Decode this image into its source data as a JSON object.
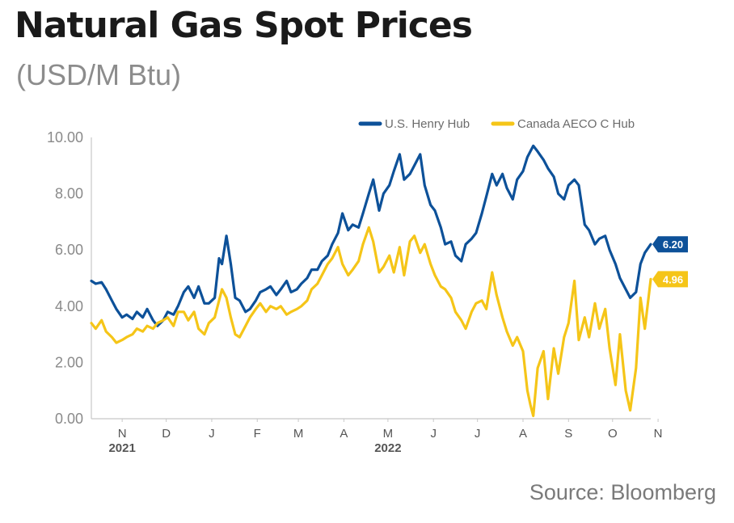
{
  "header": {
    "title": "Natural Gas Spot Prices",
    "subtitle": "(USD/M Btu)"
  },
  "footer": {
    "source": "Source: Bloomberg"
  },
  "colors": {
    "henry": "#0d5199",
    "aeco": "#f5c518",
    "axis": "#c8c8c8"
  },
  "chart_data": {
    "type": "line",
    "title": "Natural Gas Spot Prices",
    "subtitle": "(USD/M Btu)",
    "ylim": [
      0,
      10
    ],
    "y_ticks": [
      "0.00",
      "2.00",
      "4.00",
      "6.00",
      "8.00",
      "10.00"
    ],
    "x_range": [
      "2021-10-25",
      "2022-11-10"
    ],
    "x_ticks": [
      {
        "label": "N",
        "date": "2021-11-15"
      },
      {
        "label": "D",
        "date": "2021-12-15"
      },
      {
        "label": "J",
        "date": "2022-01-15"
      },
      {
        "label": "F",
        "date": "2022-02-15"
      },
      {
        "label": "M",
        "date": "2022-03-15"
      },
      {
        "label": "A",
        "date": "2022-04-15"
      },
      {
        "label": "M",
        "date": "2022-05-15"
      },
      {
        "label": "J",
        "date": "2022-06-15"
      },
      {
        "label": "J",
        "date": "2022-07-15"
      },
      {
        "label": "A",
        "date": "2022-08-15"
      },
      {
        "label": "S",
        "date": "2022-09-15"
      },
      {
        "label": "O",
        "date": "2022-10-15"
      },
      {
        "label": "N",
        "date": "2022-11-15"
      }
    ],
    "year_labels": [
      {
        "label": "2021",
        "date": "2021-11-15"
      },
      {
        "label": "2022",
        "date": "2022-05-15"
      }
    ],
    "legend_position": "top-right",
    "grid": false,
    "series": [
      {
        "name": "U.S. Henry Hub",
        "color": "#0d5199",
        "end_label": "6.20",
        "points": [
          [
            "2021-10-25",
            4.9
          ],
          [
            "2021-10-28",
            4.8
          ],
          [
            "2021-11-01",
            4.85
          ],
          [
            "2021-11-04",
            4.6
          ],
          [
            "2021-11-08",
            4.2
          ],
          [
            "2021-11-11",
            3.9
          ],
          [
            "2021-11-15",
            3.6
          ],
          [
            "2021-11-18",
            3.7
          ],
          [
            "2021-11-22",
            3.55
          ],
          [
            "2021-11-25",
            3.8
          ],
          [
            "2021-11-29",
            3.6
          ],
          [
            "2021-12-02",
            3.9
          ],
          [
            "2021-12-06",
            3.5
          ],
          [
            "2021-12-09",
            3.3
          ],
          [
            "2021-12-13",
            3.5
          ],
          [
            "2021-12-16",
            3.8
          ],
          [
            "2021-12-20",
            3.7
          ],
          [
            "2021-12-23",
            4.0
          ],
          [
            "2021-12-27",
            4.5
          ],
          [
            "2021-12-30",
            4.7
          ],
          [
            "2022-01-03",
            4.3
          ],
          [
            "2022-01-06",
            4.7
          ],
          [
            "2022-01-10",
            4.1
          ],
          [
            "2022-01-13",
            4.1
          ],
          [
            "2022-01-17",
            4.3
          ],
          [
            "2022-01-20",
            5.7
          ],
          [
            "2022-01-22",
            5.5
          ],
          [
            "2022-01-25",
            6.5
          ],
          [
            "2022-01-28",
            5.5
          ],
          [
            "2022-01-31",
            4.3
          ],
          [
            "2022-02-03",
            4.2
          ],
          [
            "2022-02-07",
            3.8
          ],
          [
            "2022-02-10",
            3.9
          ],
          [
            "2022-02-14",
            4.2
          ],
          [
            "2022-02-17",
            4.5
          ],
          [
            "2022-02-21",
            4.6
          ],
          [
            "2022-02-24",
            4.7
          ],
          [
            "2022-02-28",
            4.4
          ],
          [
            "2022-03-03",
            4.6
          ],
          [
            "2022-03-07",
            4.9
          ],
          [
            "2022-03-10",
            4.5
          ],
          [
            "2022-03-14",
            4.6
          ],
          [
            "2022-03-17",
            4.8
          ],
          [
            "2022-03-21",
            5.0
          ],
          [
            "2022-03-24",
            5.3
          ],
          [
            "2022-03-28",
            5.3
          ],
          [
            "2022-03-31",
            5.6
          ],
          [
            "2022-04-04",
            5.8
          ],
          [
            "2022-04-07",
            6.2
          ],
          [
            "2022-04-11",
            6.6
          ],
          [
            "2022-04-14",
            7.3
          ],
          [
            "2022-04-18",
            6.7
          ],
          [
            "2022-04-21",
            6.9
          ],
          [
            "2022-04-25",
            6.8
          ],
          [
            "2022-04-28",
            7.3
          ],
          [
            "2022-05-02",
            8.0
          ],
          [
            "2022-05-05",
            8.5
          ],
          [
            "2022-05-09",
            7.4
          ],
          [
            "2022-05-12",
            8.0
          ],
          [
            "2022-05-16",
            8.3
          ],
          [
            "2022-05-19",
            8.8
          ],
          [
            "2022-05-23",
            9.4
          ],
          [
            "2022-05-26",
            8.5
          ],
          [
            "2022-05-30",
            8.7
          ],
          [
            "2022-06-02",
            9.0
          ],
          [
            "2022-06-06",
            9.4
          ],
          [
            "2022-06-09",
            8.3
          ],
          [
            "2022-06-13",
            7.6
          ],
          [
            "2022-06-16",
            7.4
          ],
          [
            "2022-06-20",
            6.8
          ],
          [
            "2022-06-23",
            6.2
          ],
          [
            "2022-06-27",
            6.3
          ],
          [
            "2022-06-30",
            5.8
          ],
          [
            "2022-07-04",
            5.6
          ],
          [
            "2022-07-07",
            6.2
          ],
          [
            "2022-07-11",
            6.4
          ],
          [
            "2022-07-14",
            6.6
          ],
          [
            "2022-07-18",
            7.3
          ],
          [
            "2022-07-21",
            7.9
          ],
          [
            "2022-07-25",
            8.7
          ],
          [
            "2022-07-28",
            8.3
          ],
          [
            "2022-08-01",
            8.7
          ],
          [
            "2022-08-04",
            8.2
          ],
          [
            "2022-08-08",
            7.8
          ],
          [
            "2022-08-11",
            8.5
          ],
          [
            "2022-08-15",
            8.8
          ],
          [
            "2022-08-18",
            9.3
          ],
          [
            "2022-08-22",
            9.7
          ],
          [
            "2022-08-25",
            9.5
          ],
          [
            "2022-08-29",
            9.2
          ],
          [
            "2022-09-01",
            8.9
          ],
          [
            "2022-09-05",
            8.6
          ],
          [
            "2022-09-08",
            8.0
          ],
          [
            "2022-09-12",
            7.8
          ],
          [
            "2022-09-15",
            8.3
          ],
          [
            "2022-09-19",
            8.5
          ],
          [
            "2022-09-22",
            8.3
          ],
          [
            "2022-09-26",
            6.9
          ],
          [
            "2022-09-29",
            6.7
          ],
          [
            "2022-10-03",
            6.2
          ],
          [
            "2022-10-06",
            6.4
          ],
          [
            "2022-10-10",
            6.5
          ],
          [
            "2022-10-13",
            6.0
          ],
          [
            "2022-10-17",
            5.5
          ],
          [
            "2022-10-20",
            5.0
          ],
          [
            "2022-10-24",
            4.6
          ],
          [
            "2022-10-27",
            4.3
          ],
          [
            "2022-10-31",
            4.5
          ],
          [
            "2022-11-03",
            5.5
          ],
          [
            "2022-11-06",
            5.9
          ],
          [
            "2022-11-10",
            6.2
          ]
        ]
      },
      {
        "name": "Canada AECO C Hub",
        "color": "#f5c518",
        "end_label": "4.96",
        "points": [
          [
            "2021-10-25",
            3.4
          ],
          [
            "2021-10-28",
            3.2
          ],
          [
            "2021-11-01",
            3.5
          ],
          [
            "2021-11-04",
            3.1
          ],
          [
            "2021-11-08",
            2.9
          ],
          [
            "2021-11-11",
            2.7
          ],
          [
            "2021-11-15",
            2.8
          ],
          [
            "2021-11-18",
            2.9
          ],
          [
            "2021-11-22",
            3.0
          ],
          [
            "2021-11-25",
            3.2
          ],
          [
            "2021-11-29",
            3.1
          ],
          [
            "2021-12-02",
            3.3
          ],
          [
            "2021-12-06",
            3.2
          ],
          [
            "2021-12-09",
            3.4
          ],
          [
            "2021-12-13",
            3.5
          ],
          [
            "2021-12-16",
            3.6
          ],
          [
            "2021-12-20",
            3.3
          ],
          [
            "2021-12-23",
            3.8
          ],
          [
            "2021-12-27",
            3.8
          ],
          [
            "2021-12-30",
            3.5
          ],
          [
            "2022-01-03",
            3.8
          ],
          [
            "2022-01-06",
            3.2
          ],
          [
            "2022-01-10",
            3.0
          ],
          [
            "2022-01-13",
            3.4
          ],
          [
            "2022-01-17",
            3.6
          ],
          [
            "2022-01-20",
            4.2
          ],
          [
            "2022-01-22",
            4.6
          ],
          [
            "2022-01-25",
            4.3
          ],
          [
            "2022-01-28",
            3.6
          ],
          [
            "2022-01-31",
            3.0
          ],
          [
            "2022-02-03",
            2.9
          ],
          [
            "2022-02-07",
            3.3
          ],
          [
            "2022-02-10",
            3.6
          ],
          [
            "2022-02-14",
            3.9
          ],
          [
            "2022-02-17",
            4.1
          ],
          [
            "2022-02-21",
            3.8
          ],
          [
            "2022-02-24",
            4.0
          ],
          [
            "2022-02-28",
            3.9
          ],
          [
            "2022-03-03",
            4.0
          ],
          [
            "2022-03-07",
            3.7
          ],
          [
            "2022-03-10",
            3.8
          ],
          [
            "2022-03-14",
            3.9
          ],
          [
            "2022-03-17",
            4.0
          ],
          [
            "2022-03-21",
            4.2
          ],
          [
            "2022-03-24",
            4.6
          ],
          [
            "2022-03-28",
            4.8
          ],
          [
            "2022-03-31",
            5.1
          ],
          [
            "2022-04-04",
            5.5
          ],
          [
            "2022-04-07",
            5.7
          ],
          [
            "2022-04-11",
            6.1
          ],
          [
            "2022-04-14",
            5.5
          ],
          [
            "2022-04-18",
            5.1
          ],
          [
            "2022-04-21",
            5.3
          ],
          [
            "2022-04-25",
            5.6
          ],
          [
            "2022-04-28",
            6.2
          ],
          [
            "2022-05-02",
            6.8
          ],
          [
            "2022-05-05",
            6.3
          ],
          [
            "2022-05-09",
            5.2
          ],
          [
            "2022-05-12",
            5.4
          ],
          [
            "2022-05-16",
            5.8
          ],
          [
            "2022-05-19",
            5.2
          ],
          [
            "2022-05-23",
            6.1
          ],
          [
            "2022-05-26",
            5.1
          ],
          [
            "2022-05-30",
            6.3
          ],
          [
            "2022-06-02",
            6.5
          ],
          [
            "2022-06-06",
            5.9
          ],
          [
            "2022-06-09",
            6.2
          ],
          [
            "2022-06-13",
            5.5
          ],
          [
            "2022-06-16",
            5.1
          ],
          [
            "2022-06-20",
            4.7
          ],
          [
            "2022-06-23",
            4.6
          ],
          [
            "2022-06-27",
            4.3
          ],
          [
            "2022-06-30",
            3.8
          ],
          [
            "2022-07-04",
            3.5
          ],
          [
            "2022-07-07",
            3.2
          ],
          [
            "2022-07-11",
            3.8
          ],
          [
            "2022-07-14",
            4.1
          ],
          [
            "2022-07-18",
            4.2
          ],
          [
            "2022-07-21",
            3.9
          ],
          [
            "2022-07-25",
            5.2
          ],
          [
            "2022-07-28",
            4.4
          ],
          [
            "2022-08-01",
            3.6
          ],
          [
            "2022-08-04",
            3.1
          ],
          [
            "2022-08-08",
            2.6
          ],
          [
            "2022-08-11",
            2.9
          ],
          [
            "2022-08-15",
            2.4
          ],
          [
            "2022-08-18",
            1.0
          ],
          [
            "2022-08-20",
            0.5
          ],
          [
            "2022-08-22",
            0.1
          ],
          [
            "2022-08-25",
            1.8
          ],
          [
            "2022-08-29",
            2.4
          ],
          [
            "2022-09-01",
            0.7
          ],
          [
            "2022-09-05",
            2.5
          ],
          [
            "2022-09-08",
            1.6
          ],
          [
            "2022-09-12",
            2.9
          ],
          [
            "2022-09-15",
            3.4
          ],
          [
            "2022-09-19",
            4.9
          ],
          [
            "2022-09-22",
            2.8
          ],
          [
            "2022-09-26",
            3.6
          ],
          [
            "2022-09-29",
            2.9
          ],
          [
            "2022-10-03",
            4.1
          ],
          [
            "2022-10-06",
            3.2
          ],
          [
            "2022-10-10",
            3.9
          ],
          [
            "2022-10-13",
            2.5
          ],
          [
            "2022-10-17",
            1.2
          ],
          [
            "2022-10-20",
            3.0
          ],
          [
            "2022-10-24",
            1.0
          ],
          [
            "2022-10-27",
            0.3
          ],
          [
            "2022-10-31",
            1.8
          ],
          [
            "2022-11-03",
            4.3
          ],
          [
            "2022-11-06",
            3.2
          ],
          [
            "2022-11-10",
            4.96
          ]
        ]
      }
    ]
  }
}
